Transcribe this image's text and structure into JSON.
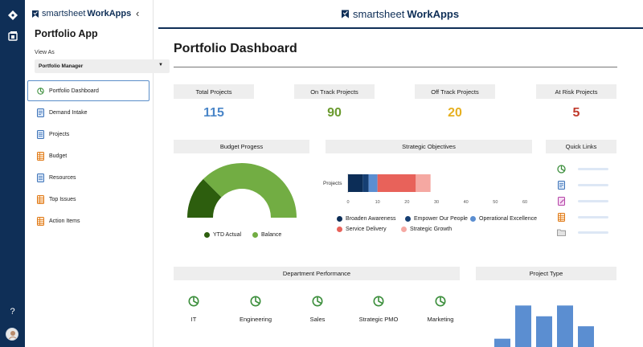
{
  "app": {
    "brand_name": "smartsheet",
    "brand_product": "WorkApps",
    "title": "Portfolio App",
    "view_as_label": "View As",
    "view_as_value": "Portfolio Manager"
  },
  "rail": {
    "icons": [
      "diamond-nav-icon",
      "apps-icon",
      "help-icon",
      "user-avatar"
    ],
    "help_label": "?"
  },
  "sidebar": {
    "items": [
      {
        "label": "Portfolio Dashboard",
        "icon": "pie-chart-icon",
        "active": true
      },
      {
        "label": "Demand Intake",
        "icon": "form-icon",
        "active": false
      },
      {
        "label": "Projects",
        "icon": "sheet-icon",
        "active": false
      },
      {
        "label": "Budget",
        "icon": "grid-sheet-icon",
        "active": false
      },
      {
        "label": "Resources",
        "icon": "sheet-icon",
        "active": false
      },
      {
        "label": "Top Issues",
        "icon": "grid-sheet-icon",
        "active": false
      },
      {
        "label": "Action Items",
        "icon": "grid-sheet-icon",
        "active": false
      }
    ]
  },
  "dashboard": {
    "title": "Portfolio Dashboard",
    "kpis": [
      {
        "label": "Total Projects",
        "value": "115",
        "color": "#4a86c8"
      },
      {
        "label": "On Track Projects",
        "value": "90",
        "color": "#6a9a2e"
      },
      {
        "label": "Off Track Projects",
        "value": "20",
        "color": "#e6b020"
      },
      {
        "label": "At Risk Projects",
        "value": "5",
        "color": "#c0392b"
      }
    ],
    "budget": {
      "header": "Budget Progess",
      "legend": [
        {
          "label": "YTD Actual",
          "color": "#2d5e0e"
        },
        {
          "label": "Balance",
          "color": "#72ad43"
        }
      ]
    },
    "strategic": {
      "header": "Strategic Objectives",
      "row_label": "Projects",
      "legend": [
        {
          "label": "Broaden Awareness",
          "color": "#0c2d57"
        },
        {
          "label": "Empower Our People",
          "color": "#163f73"
        },
        {
          "label": "Operational Excellence",
          "color": "#5b8ed1"
        },
        {
          "label": "Service Delivery",
          "color": "#e8625a"
        },
        {
          "label": "Strategic Growth",
          "color": "#f5a8a2"
        }
      ]
    },
    "quick_links": {
      "header": "Quick Links",
      "icons": [
        "pie-chart-icon",
        "form-icon",
        "form-edit-icon",
        "grid-sheet-icon",
        "folder-icon"
      ]
    },
    "department": {
      "header": "Department Performance",
      "items": [
        {
          "label": "IT"
        },
        {
          "label": "Engineering"
        },
        {
          "label": "Sales"
        },
        {
          "label": "Strategic PMO"
        },
        {
          "label": "Marketing"
        }
      ]
    },
    "project_type": {
      "header": "Project Type"
    }
  },
  "chart_data": [
    {
      "type": "pie",
      "title": "Budget Progess",
      "style": "half-donut",
      "labels": [
        "YTD Actual",
        "Balance"
      ],
      "values": [
        25,
        75
      ]
    },
    {
      "type": "bar",
      "orientation": "horizontal-stacked",
      "title": "Strategic Objectives",
      "categories": [
        "Projects"
      ],
      "series": [
        {
          "name": "Broaden Awareness",
          "values": [
            5
          ]
        },
        {
          "name": "Empower Our People",
          "values": [
            2
          ]
        },
        {
          "name": "Operational Excellence",
          "values": [
            3
          ]
        },
        {
          "name": "Service Delivery",
          "values": [
            13
          ]
        },
        {
          "name": "Strategic Growth",
          "values": [
            5
          ]
        }
      ],
      "xlim": [
        0,
        60
      ],
      "xticks": [
        "0",
        "10",
        "20",
        "30",
        "40",
        "50",
        "60"
      ]
    },
    {
      "type": "bar",
      "title": "Project Type",
      "values": [
        10,
        50,
        37,
        50,
        25
      ],
      "ylim": [
        0,
        60
      ]
    }
  ]
}
